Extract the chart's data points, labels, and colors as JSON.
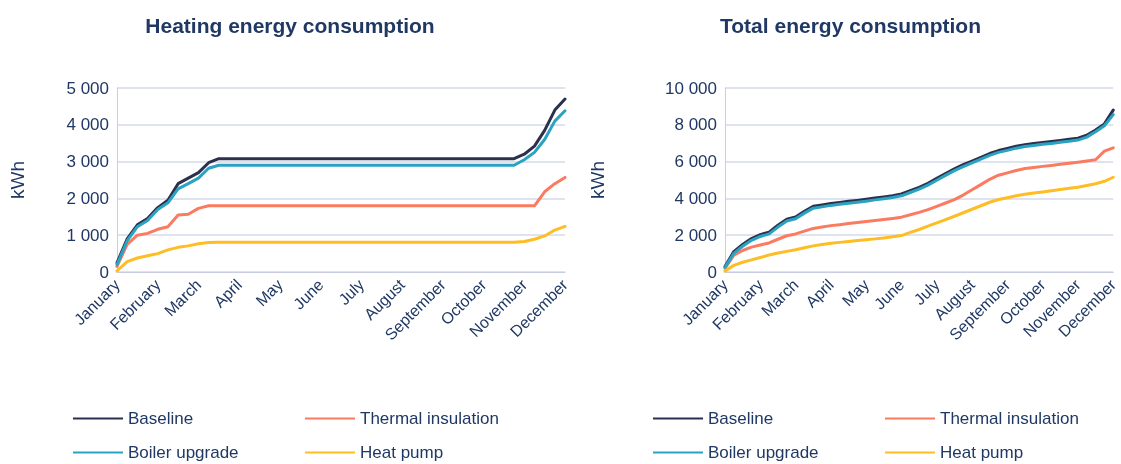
{
  "chart_data": [
    {
      "type": "line",
      "title": "Heating energy consumption",
      "ylabel": "kWh",
      "categories": [
        "January",
        null,
        null,
        null,
        "February",
        null,
        null,
        null,
        "March",
        null,
        null,
        null,
        "April",
        null,
        null,
        null,
        "May",
        null,
        null,
        null,
        "June",
        null,
        null,
        null,
        "July",
        null,
        null,
        null,
        "August",
        null,
        null,
        null,
        "September",
        null,
        null,
        null,
        "October",
        null,
        null,
        null,
        "November",
        null,
        null,
        null,
        "December"
      ],
      "ylim": [
        0,
        5000
      ],
      "yticks": [
        0,
        {
          "value": 1000,
          "label": "1 000"
        },
        {
          "value": 2000,
          "label": "2 000"
        },
        {
          "value": 3000,
          "label": "3 000"
        },
        {
          "value": 4000,
          "label": "4 000"
        },
        {
          "value": 5000,
          "label": "5 000"
        }
      ],
      "grid": "y",
      "legend": "bottom",
      "marker": "none",
      "line_style": "solid",
      "series": [
        {
          "name": "Baseline",
          "color": "#2b304d",
          "values": [
            250,
            900,
            1280,
            1450,
            1750,
            1950,
            2400,
            2550,
            2700,
            2970,
            3080,
            3080,
            3080,
            3080,
            3080,
            3080,
            3080,
            3080,
            3080,
            3080,
            3080,
            3080,
            3080,
            3080,
            3080,
            3080,
            3080,
            3080,
            3080,
            3080,
            3080,
            3080,
            3080,
            3080,
            3080,
            3080,
            3080,
            3080,
            3080,
            3080,
            3200,
            3420,
            3850,
            4400,
            4700
          ]
        },
        {
          "name": "Thermal insulation",
          "color": "#fa7b5f",
          "values": [
            150,
            750,
            1000,
            1050,
            1160,
            1230,
            1550,
            1570,
            1730,
            1800,
            1800,
            1800,
            1800,
            1800,
            1800,
            1800,
            1800,
            1800,
            1800,
            1800,
            1800,
            1800,
            1800,
            1800,
            1800,
            1800,
            1800,
            1800,
            1800,
            1800,
            1800,
            1800,
            1800,
            1800,
            1800,
            1800,
            1800,
            1800,
            1800,
            1800,
            1800,
            1800,
            2180,
            2400,
            2570
          ]
        },
        {
          "name": "Boiler upgrade",
          "color": "#2aa3c3",
          "values": [
            200,
            850,
            1230,
            1400,
            1700,
            1880,
            2260,
            2400,
            2550,
            2820,
            2900,
            2900,
            2900,
            2900,
            2900,
            2900,
            2900,
            2900,
            2900,
            2900,
            2900,
            2900,
            2900,
            2900,
            2900,
            2900,
            2900,
            2900,
            2900,
            2900,
            2900,
            2900,
            2900,
            2900,
            2900,
            2900,
            2900,
            2900,
            2900,
            2900,
            3050,
            3250,
            3600,
            4100,
            4380
          ]
        },
        {
          "name": "Heat pump",
          "color": "#fdbd23",
          "values": [
            30,
            280,
            380,
            440,
            500,
            600,
            670,
            710,
            770,
            800,
            810,
            810,
            810,
            810,
            810,
            810,
            810,
            810,
            810,
            810,
            810,
            810,
            810,
            810,
            810,
            810,
            810,
            810,
            810,
            810,
            810,
            810,
            810,
            810,
            810,
            810,
            810,
            810,
            810,
            810,
            830,
            890,
            980,
            1140,
            1240
          ]
        }
      ]
    },
    {
      "type": "line",
      "title": "Total energy consumption",
      "ylabel": "kWh",
      "categories": [
        "January",
        null,
        null,
        null,
        "February",
        null,
        null,
        null,
        "March",
        null,
        null,
        null,
        "April",
        null,
        null,
        null,
        "May",
        null,
        null,
        null,
        "June",
        null,
        null,
        null,
        "July",
        null,
        null,
        null,
        "August",
        null,
        null,
        null,
        "September",
        null,
        null,
        null,
        "October",
        null,
        null,
        null,
        "November",
        null,
        null,
        null,
        "December"
      ],
      "ylim": [
        0,
        10000
      ],
      "yticks": [
        0,
        {
          "value": 2000,
          "label": "2 000"
        },
        {
          "value": 4000,
          "label": "4 000"
        },
        {
          "value": 6000,
          "label": "6 000"
        },
        {
          "value": 8000,
          "label": "8 000"
        },
        {
          "value": 10000,
          "label": "10 000"
        }
      ],
      "grid": "y",
      "legend": "bottom",
      "marker": "none",
      "line_style": "solid",
      "series": [
        {
          "name": "Baseline",
          "color": "#2b304d",
          "values": [
            300,
            1110,
            1500,
            1820,
            2030,
            2170,
            2540,
            2870,
            2990,
            3300,
            3570,
            3640,
            3720,
            3780,
            3840,
            3890,
            3950,
            4020,
            4080,
            4150,
            4240,
            4420,
            4600,
            4820,
            5090,
            5350,
            5610,
            5830,
            6030,
            6230,
            6440,
            6600,
            6710,
            6830,
            6920,
            6980,
            7040,
            7090,
            7150,
            7210,
            7270,
            7430,
            7720,
            8050,
            8800
          ]
        },
        {
          "name": "Thermal insulation",
          "color": "#fa7b5f",
          "values": [
            200,
            910,
            1170,
            1350,
            1470,
            1580,
            1780,
            1970,
            2070,
            2220,
            2370,
            2440,
            2520,
            2570,
            2630,
            2690,
            2750,
            2800,
            2850,
            2910,
            2980,
            3110,
            3240,
            3390,
            3570,
            3750,
            3930,
            4180,
            4470,
            4750,
            5040,
            5260,
            5390,
            5520,
            5620,
            5680,
            5740,
            5790,
            5850,
            5910,
            5970,
            6030,
            6100,
            6570,
            6750
          ]
        },
        {
          "name": "Boiler upgrade",
          "color": "#2aa3c3",
          "values": [
            250,
            1010,
            1400,
            1720,
            1930,
            2070,
            2440,
            2770,
            2890,
            3200,
            3470,
            3540,
            3620,
            3680,
            3740,
            3790,
            3850,
            3920,
            3980,
            4050,
            4140,
            4320,
            4500,
            4720,
            4990,
            5250,
            5510,
            5730,
            5930,
            6130,
            6340,
            6500,
            6610,
            6730,
            6820,
            6880,
            6940,
            6990,
            7050,
            7110,
            7170,
            7330,
            7620,
            7950,
            8550
          ]
        },
        {
          "name": "Heat pump",
          "color": "#fdbd23",
          "values": [
            50,
            360,
            530,
            660,
            790,
            920,
            1030,
            1120,
            1210,
            1320,
            1420,
            1490,
            1560,
            1610,
            1660,
            1710,
            1750,
            1800,
            1850,
            1910,
            1980,
            2150,
            2310,
            2490,
            2670,
            2850,
            3030,
            3220,
            3410,
            3600,
            3790,
            3940,
            4040,
            4140,
            4220,
            4290,
            4350,
            4420,
            4480,
            4550,
            4610,
            4700,
            4800,
            4930,
            5150
          ]
        }
      ]
    }
  ]
}
